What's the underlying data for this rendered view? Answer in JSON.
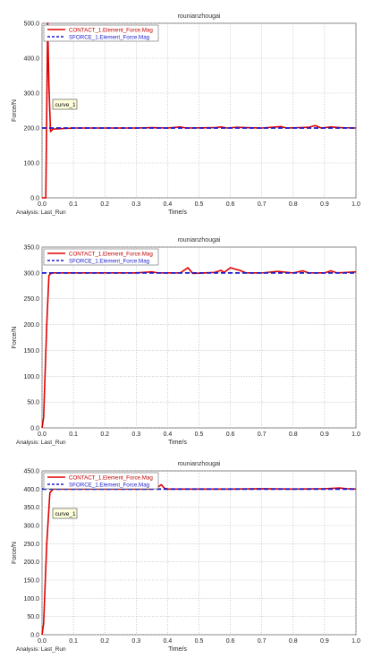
{
  "chart_data": [
    {
      "type": "line",
      "title": "rounianzhougai",
      "xlabel": "Time/s",
      "ylabel": "Force/N",
      "xlim": [
        0.0,
        1.0
      ],
      "ylim": [
        0.0,
        500.0
      ],
      "x_ticks": [
        "0.0",
        "0.1",
        "0.2",
        "0.3",
        "0.4",
        "0.5",
        "0.6",
        "0.7",
        "0.8",
        "0.9",
        "1.0"
      ],
      "y_ticks": [
        "0.0",
        "100.0",
        "200.0",
        "300.0",
        "400.0",
        "500.0"
      ],
      "analysis_label": "Analysis:  Last_Run",
      "annotation": "curve_1",
      "legend": "top-left",
      "grid": true,
      "series": [
        {
          "name": "CONTACT_1.Element_Force.Mag",
          "color": "#e00000",
          "style": "solid",
          "points": [
            [
              0.0,
              0
            ],
            [
              0.012,
              0
            ],
            [
              0.018,
              500
            ],
            [
              0.022,
              320
            ],
            [
              0.027,
              190
            ],
            [
              0.035,
              197
            ],
            [
              0.1,
              200
            ],
            [
              0.2,
              200
            ],
            [
              0.3,
              200
            ],
            [
              0.35,
              201
            ],
            [
              0.4,
              200
            ],
            [
              0.44,
              203
            ],
            [
              0.46,
              200
            ],
            [
              0.55,
              201
            ],
            [
              0.57,
              203
            ],
            [
              0.59,
              200
            ],
            [
              0.62,
              202
            ],
            [
              0.65,
              201
            ],
            [
              0.7,
              200
            ],
            [
              0.76,
              204
            ],
            [
              0.78,
              200
            ],
            [
              0.85,
              202
            ],
            [
              0.87,
              207
            ],
            [
              0.89,
              200
            ],
            [
              0.92,
              203
            ],
            [
              0.95,
              201
            ],
            [
              1.0,
              200
            ]
          ]
        },
        {
          "name": "SFORCE_1.Element_Force.Mag",
          "color": "#1a1acc",
          "style": "dashed",
          "points": [
            [
              0.0,
              200
            ],
            [
              1.0,
              200
            ]
          ]
        }
      ]
    },
    {
      "type": "line",
      "title": "rounianzhougai",
      "xlabel": "Time/s",
      "ylabel": "Force/N",
      "xlim": [
        0.0,
        1.0
      ],
      "ylim": [
        0.0,
        350.0
      ],
      "x_ticks": [
        "0.0",
        "0.1",
        "0.2",
        "0.3",
        "0.4",
        "0.5",
        "0.6",
        "0.7",
        "0.8",
        "0.9",
        "1.0"
      ],
      "y_ticks": [
        "0.0",
        "50.0",
        "100.0",
        "150.0",
        "200.0",
        "250.0",
        "300.0",
        "350.0"
      ],
      "analysis_label": "Analysis:  Last_Run",
      "annotation": "",
      "legend": "top-left",
      "grid": true,
      "series": [
        {
          "name": "CONTACT_1.Element_Force.Mag",
          "color": "#e00000",
          "style": "solid",
          "points": [
            [
              0.0,
              0
            ],
            [
              0.005,
              20
            ],
            [
              0.015,
              200
            ],
            [
              0.022,
              295
            ],
            [
              0.03,
              300
            ],
            [
              0.1,
              300
            ],
            [
              0.2,
              300
            ],
            [
              0.3,
              300
            ],
            [
              0.35,
              302
            ],
            [
              0.37,
              300
            ],
            [
              0.44,
              300
            ],
            [
              0.465,
              310
            ],
            [
              0.48,
              299
            ],
            [
              0.55,
              301
            ],
            [
              0.57,
              305
            ],
            [
              0.58,
              301
            ],
            [
              0.6,
              310
            ],
            [
              0.63,
              305
            ],
            [
              0.65,
              300
            ],
            [
              0.7,
              300
            ],
            [
              0.75,
              303
            ],
            [
              0.8,
              300
            ],
            [
              0.83,
              304
            ],
            [
              0.85,
              300
            ],
            [
              0.9,
              300
            ],
            [
              0.92,
              304
            ],
            [
              0.94,
              300
            ],
            [
              1.0,
              302
            ]
          ]
        },
        {
          "name": "SFORCE_1.Element_Force.Mag",
          "color": "#1a1acc",
          "style": "dashed",
          "points": [
            [
              0.0,
              300
            ],
            [
              1.0,
              300
            ]
          ]
        }
      ]
    },
    {
      "type": "line",
      "title": "rounianzhougai",
      "xlabel": "Time/s",
      "ylabel": "Force/N",
      "xlim": [
        0.0,
        1.0
      ],
      "ylim": [
        0.0,
        450.0
      ],
      "x_ticks": [
        "0.0",
        "0.1",
        "0.2",
        "0.3",
        "0.4",
        "0.5",
        "0.6",
        "0.7",
        "0.8",
        "0.9",
        "1.0"
      ],
      "y_ticks": [
        "0.0",
        "50.0",
        "100.0",
        "150.0",
        "200.0",
        "250.0",
        "300.0",
        "350.0",
        "400.0",
        "450.0"
      ],
      "analysis_label": "Analysis:  Last_Run",
      "annotation": "curve_1",
      "legend": "top-left",
      "grid": true,
      "series": [
        {
          "name": "CONTACT_1.Element_Force.Mag",
          "color": "#e00000",
          "style": "solid",
          "points": [
            [
              0.0,
              0
            ],
            [
              0.005,
              30
            ],
            [
              0.015,
              250
            ],
            [
              0.025,
              390
            ],
            [
              0.035,
              400
            ],
            [
              0.1,
              400
            ],
            [
              0.2,
              400
            ],
            [
              0.3,
              400
            ],
            [
              0.35,
              400
            ],
            [
              0.37,
              406
            ],
            [
              0.38,
              412
            ],
            [
              0.39,
              402
            ],
            [
              0.4,
              400
            ],
            [
              0.5,
              400
            ],
            [
              0.6,
              400
            ],
            [
              0.7,
              401
            ],
            [
              0.8,
              400
            ],
            [
              0.9,
              401
            ],
            [
              0.95,
              403
            ],
            [
              0.97,
              401
            ],
            [
              1.0,
              400
            ]
          ]
        },
        {
          "name": "SFORCE_1.Element_Force.Mag",
          "color": "#1a1acc",
          "style": "dashed",
          "points": [
            [
              0.0,
              400
            ],
            [
              1.0,
              400
            ]
          ]
        }
      ]
    }
  ]
}
